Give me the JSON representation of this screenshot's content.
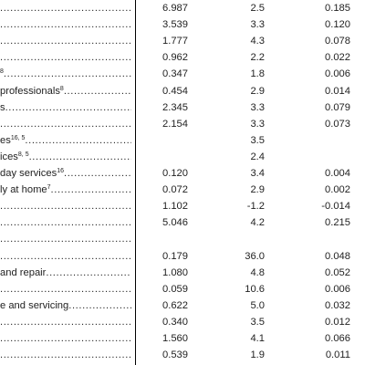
{
  "rows": [
    {
      "label": "",
      "sup": "",
      "v1": "6.987",
      "v2": "2.5",
      "v3": "0.185"
    },
    {
      "label": "",
      "sup": "",
      "v1": "3.539",
      "v2": "3.3",
      "v3": "0.120"
    },
    {
      "label": "",
      "sup": "",
      "v1": "1.777",
      "v2": "4.3",
      "v3": "0.078"
    },
    {
      "label": "",
      "sup": "",
      "v1": "0.962",
      "v2": "2.2",
      "v3": "0.022"
    },
    {
      "label": "",
      "sup": "8",
      "v1": "0.347",
      "v2": "1.8",
      "v3": "0.006"
    },
    {
      "label": "professionals",
      "sup": "8",
      "v1": "0.454",
      "v2": "2.9",
      "v3": "0.014"
    },
    {
      "label": "s",
      "sup": "",
      "v1": "2.345",
      "v2": "3.3",
      "v3": "0.079"
    },
    {
      "label": "",
      "sup": "",
      "v1": "2.154",
      "v2": "3.3",
      "v3": "0.073"
    },
    {
      "label": "es",
      "sup": "16, 5",
      "v1": "",
      "v2": "3.5",
      "v3": ""
    },
    {
      "label": "ices",
      "sup": "8, 5",
      "v1": "",
      "v2": "2.4",
      "v3": ""
    },
    {
      "label": "day services",
      "sup": "16",
      "v1": "0.120",
      "v2": "3.4",
      "v3": "0.004"
    },
    {
      "label": "ly at home",
      "sup": "7",
      "v1": "0.072",
      "v2": "2.9",
      "v3": "0.002"
    },
    {
      "label": "",
      "sup": "",
      "v1": "1.102",
      "v2": "-1.2",
      "v3": "-0.014"
    },
    {
      "label": "",
      "sup": "",
      "v1": "5.046",
      "v2": "4.2",
      "v3": "0.215"
    },
    {
      "label": "",
      "sup": "",
      "v1": "",
      "v2": "",
      "v3": ""
    },
    {
      "label": "",
      "sup": "",
      "v1": "0.179",
      "v2": "36.0",
      "v3": "0.048"
    },
    {
      "label": "and repair",
      "sup": "",
      "v1": "1.080",
      "v2": "4.8",
      "v3": "0.052"
    },
    {
      "label": "",
      "sup": "",
      "v1": "0.059",
      "v2": "10.6",
      "v3": "0.006"
    },
    {
      "label": "e and servicing",
      "sup": "",
      "v1": "0.622",
      "v2": "5.0",
      "v3": "0.032"
    },
    {
      "label": "",
      "sup": "",
      "v1": "0.340",
      "v2": "3.5",
      "v3": "0.012"
    },
    {
      "label": "",
      "sup": "",
      "v1": "1.560",
      "v2": "4.1",
      "v3": "0.066"
    },
    {
      "label": "",
      "sup": "",
      "v1": "0.539",
      "v2": "1.9",
      "v3": "0.011"
    }
  ]
}
